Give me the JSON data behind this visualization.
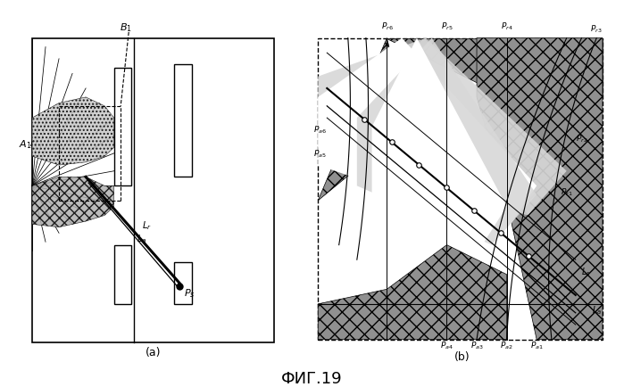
{
  "bg_color": "#ffffff",
  "fig_title": "ФИГ.19",
  "panel_a_label": "(a)",
  "panel_b_label": "(b)"
}
